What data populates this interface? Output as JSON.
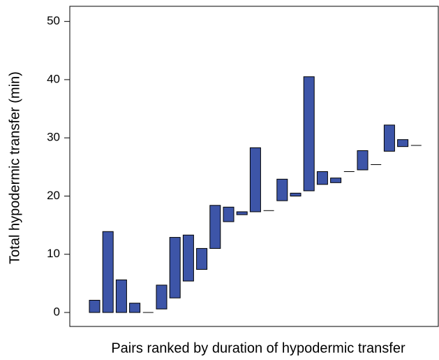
{
  "chart_data": {
    "type": "floating-bar",
    "xlabel": "Pairs ranked by duration of hypodermic transfer",
    "ylabel": "Total hypodermic transfer (min)",
    "categories": [
      null,
      null,
      null,
      null,
      null,
      null,
      null,
      null,
      null,
      null,
      null,
      null,
      null,
      null,
      null,
      null,
      null,
      null,
      null,
      null,
      null,
      null,
      null,
      null,
      null
    ],
    "low": [
      0,
      0,
      0,
      0,
      0,
      0.6,
      2.5,
      5.4,
      7.4,
      11.0,
      15.6,
      16.8,
      17.3,
      17.5,
      19.2,
      20.0,
      20.9,
      22.0,
      22.3,
      24.2,
      24.5,
      25.4,
      27.7,
      28.5,
      28.7
    ],
    "high": [
      2.1,
      13.9,
      5.6,
      1.6,
      0,
      4.7,
      12.9,
      13.3,
      11.0,
      18.4,
      18.1,
      17.3,
      28.3,
      17.5,
      22.9,
      20.5,
      40.5,
      24.2,
      23.1,
      24.2,
      27.8,
      25.4,
      32.2,
      29.7,
      28.7
    ],
    "color": "#3d55a8",
    "ylim": [
      -2.4,
      52.6
    ],
    "yticks": [
      0,
      10,
      20,
      30,
      40,
      50
    ],
    "grid": false
  }
}
